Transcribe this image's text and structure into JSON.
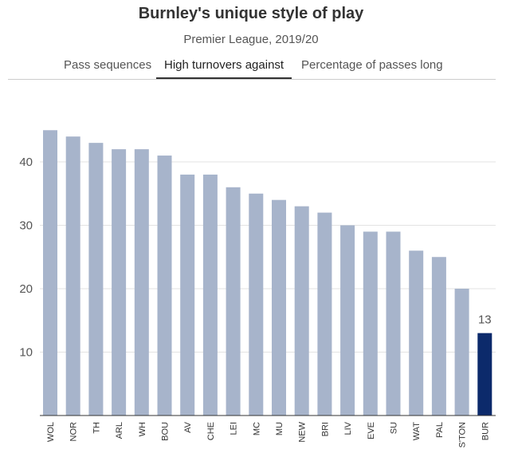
{
  "header": {
    "title": "Burnley's unique style of play",
    "subtitle": "Premier League, 2019/20"
  },
  "tabs": [
    {
      "label": "Pass sequences",
      "active": false
    },
    {
      "label": "High turnovers against",
      "active": true
    },
    {
      "label": "Percentage of passes long",
      "active": false
    }
  ],
  "colors": {
    "bar_default": "#a7b4cb",
    "bar_highlight": "#0c2a6b",
    "grid": "#e3e3e3",
    "axis": "#333333"
  },
  "chart_data": {
    "type": "bar",
    "categories": [
      "WOL",
      "NOR",
      "TH",
      "ARL",
      "WH",
      "BOU",
      "AV",
      "CHE",
      "LEI",
      "MC",
      "MU",
      "NEW",
      "BRI",
      "LIV",
      "EVE",
      "SU",
      "WAT",
      "PAL",
      "S'TON",
      "BUR"
    ],
    "values": [
      45,
      44,
      43,
      42,
      42,
      41,
      38,
      38,
      36,
      35,
      34,
      33,
      32,
      30,
      29,
      29,
      26,
      25,
      20,
      13
    ],
    "highlight": "BUR",
    "highlight_label": "13",
    "yticks": [
      10,
      20,
      30,
      40
    ],
    "ylim": [
      0,
      45
    ],
    "grid": true,
    "title": "",
    "xlabel": "",
    "ylabel": ""
  }
}
